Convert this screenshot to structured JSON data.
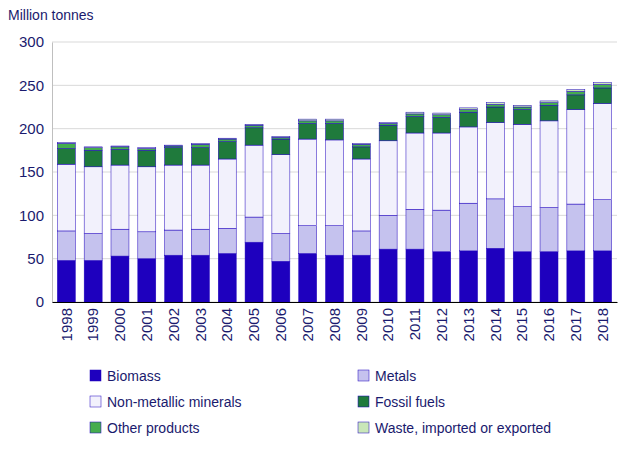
{
  "chart_data": {
    "type": "bar",
    "stacked": true,
    "grid": true,
    "legend": "bottom",
    "y_label": "Million tonnes",
    "categories": [
      "1998",
      "1999",
      "2000",
      "2001",
      "2002",
      "2003",
      "2004",
      "2005",
      "2006",
      "2007",
      "2008",
      "2009",
      "2010",
      "2011",
      "2012",
      "2013",
      "2014",
      "2015",
      "2016",
      "2017",
      "2018"
    ],
    "ylim": [
      0,
      300
    ],
    "yticks": [
      0,
      50,
      100,
      150,
      200,
      250,
      300
    ],
    "series": [
      {
        "name": "Biomass",
        "color": "#1e00be",
        "values": [
          48,
          48,
          53,
          50,
          54,
          54,
          56,
          69,
          47,
          56,
          54,
          54,
          61,
          61,
          58,
          59,
          62,
          58,
          58,
          59,
          59
        ]
      },
      {
        "name": "Metals",
        "color": "#c5c2ee",
        "values": [
          34,
          31,
          31,
          31,
          29,
          30,
          29,
          29,
          32,
          32,
          34,
          28,
          39,
          46,
          48,
          55,
          57,
          52,
          51,
          54,
          59
        ]
      },
      {
        "name": "Non-metallic minerals",
        "color": "#f2f1fc",
        "values": [
          77,
          77,
          74,
          75,
          75,
          74,
          80,
          83,
          91,
          100,
          99,
          83,
          86,
          88,
          89,
          88,
          88,
          95,
          100,
          109,
          111
        ]
      },
      {
        "name": "Fossil fuels",
        "color": "#1f7a3c",
        "values": [
          18,
          19,
          18,
          19,
          20,
          20,
          20,
          20,
          18,
          18,
          19,
          14,
          18,
          19,
          18,
          17,
          18,
          17,
          18,
          17,
          18
        ]
      },
      {
        "name": "Other products",
        "color": "#45ad4e",
        "values": [
          6,
          3,
          3,
          2,
          2,
          4,
          3,
          3,
          2,
          3,
          3,
          3,
          2,
          3,
          3,
          3,
          3,
          3,
          3,
          4,
          4
        ]
      },
      {
        "name": "Waste, imported or exported",
        "color": "#c9e7b8",
        "values": [
          1,
          1,
          1,
          1,
          1,
          1,
          1,
          1,
          1,
          2,
          2,
          1,
          1,
          2,
          2,
          2,
          2,
          2,
          2,
          2,
          2
        ]
      }
    ]
  }
}
